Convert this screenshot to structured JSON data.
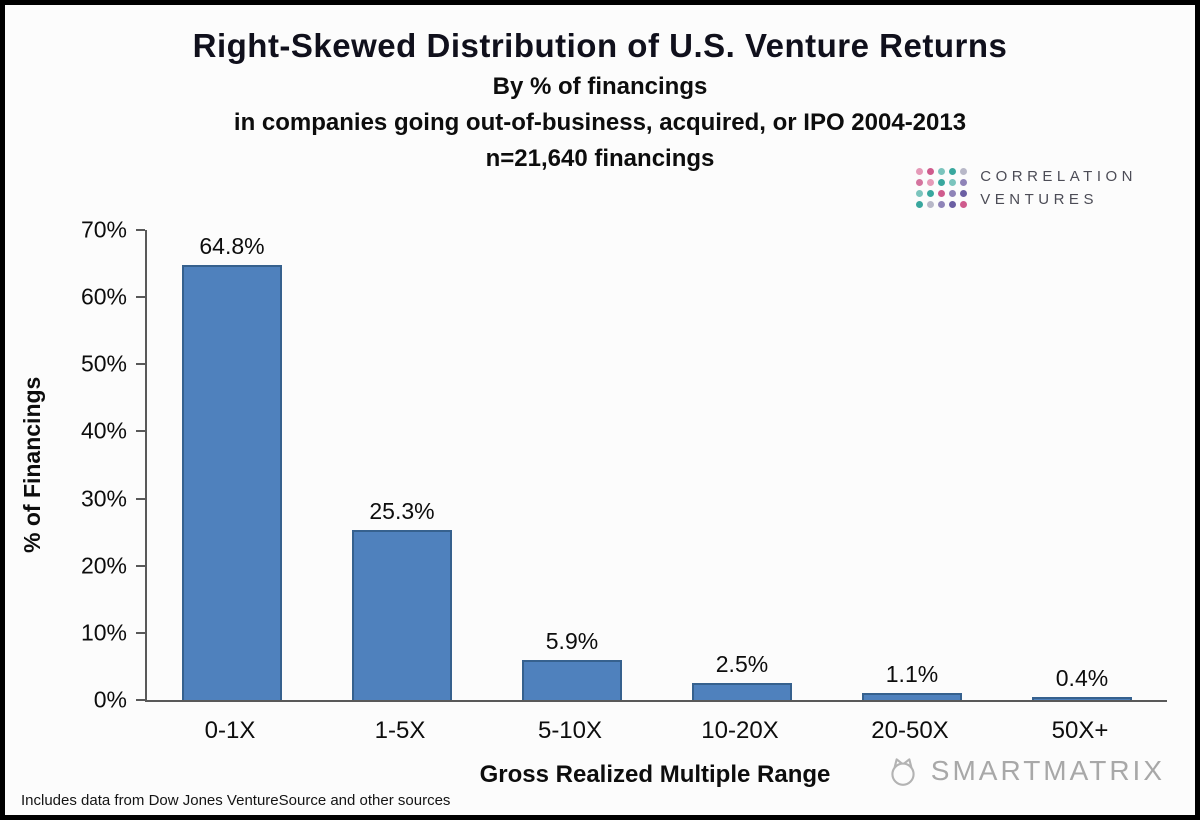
{
  "header": {
    "title": "Right-Skewed Distribution of U.S. Venture Returns",
    "subtitle1": "By % of financings",
    "subtitle2": "in companies going out-of-business, acquired, or IPO 2004-2013",
    "subtitle3": "n=21,640 financings"
  },
  "logo": {
    "line1": "CORRELATION",
    "line2": "VENTURES",
    "dot_colors": [
      "#e59ab8",
      "#cf5b8d",
      "#7bc4bd",
      "#39a79e",
      "#b8b8c8",
      "#d4749e",
      "#e59ab8",
      "#39a79e",
      "#7bc4bd",
      "#8f84b8",
      "#7bc4bd",
      "#39a79e",
      "#cf5b8d",
      "#8f84b8",
      "#6b5fa3",
      "#39a79e",
      "#b8b8c8",
      "#8f84b8",
      "#6b5fa3",
      "#cf5b8d"
    ]
  },
  "chart_data": {
    "type": "bar",
    "title": "Right-Skewed Distribution of U.S. Venture Returns",
    "subtitle": "By % of financings in companies going out-of-business, acquired, or IPO 2004-2013, n=21,640 financings",
    "categories": [
      "0-1X",
      "1-5X",
      "5-10X",
      "10-20X",
      "20-50X",
      "50X+"
    ],
    "values": [
      64.8,
      25.3,
      5.9,
      2.5,
      1.1,
      0.4
    ],
    "value_labels": [
      "64.8%",
      "25.3%",
      "5.9%",
      "2.5%",
      "1.1%",
      "0.4%"
    ],
    "xlabel": "Gross Realized Multiple Range",
    "ylabel": "% of Financings",
    "ylim": [
      0,
      70
    ],
    "yticks": [
      "0%",
      "10%",
      "20%",
      "30%",
      "40%",
      "50%",
      "60%",
      "70%"
    ],
    "grid": false,
    "legend": "none",
    "bar_color": "#4f81bd",
    "bar_border_color": "#36618e"
  },
  "footer": {
    "footnote": "Includes data from Dow Jones VentureSource and other sources",
    "watermark": "SMARTMATRIX"
  }
}
